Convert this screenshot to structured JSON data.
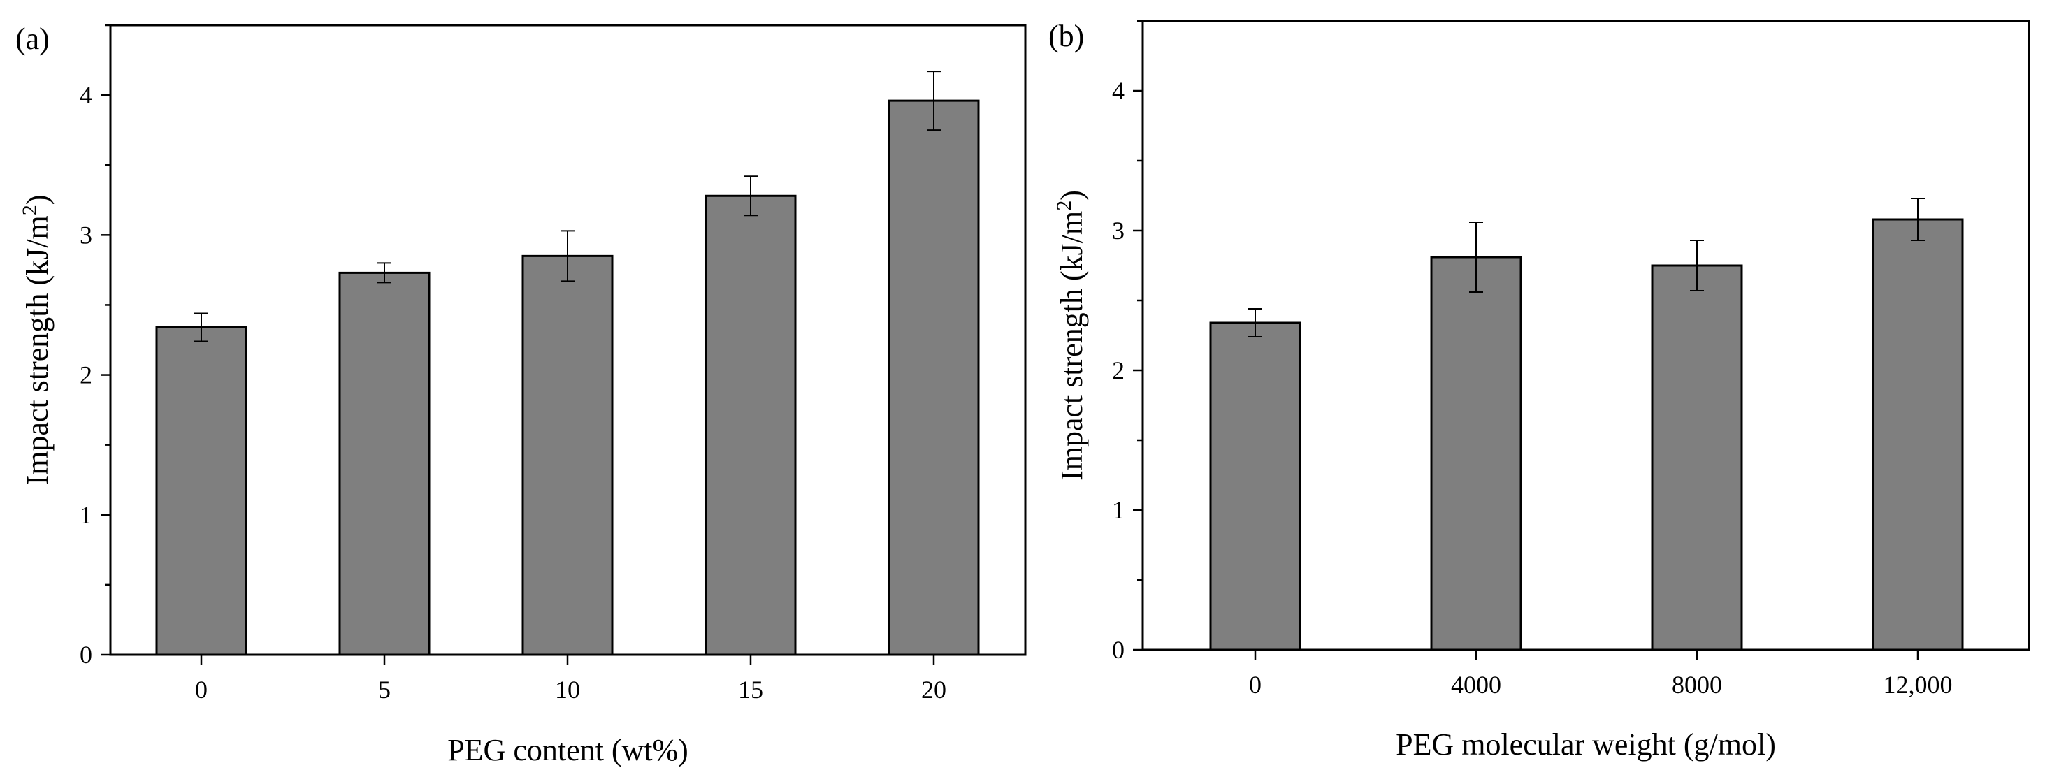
{
  "colors": {
    "bar_fill": "#7f7f7f",
    "bar_stroke": "#000000",
    "axis": "#000000",
    "background": "#ffffff"
  },
  "chart_data": [
    {
      "type": "bar",
      "panel_label": "(a)",
      "title": "",
      "categories": [
        "0",
        "5",
        "10",
        "15",
        "20"
      ],
      "values": [
        2.34,
        2.73,
        2.85,
        3.28,
        3.96
      ],
      "errors": [
        0.1,
        0.07,
        0.18,
        0.14,
        0.21
      ],
      "xlabel": "PEG content (wt%)",
      "ylabel": {
        "main": "Impact strength (kJ/m",
        "sup": "2",
        "tail": ")"
      },
      "ylim": [
        0,
        4.5
      ],
      "yticks": [
        0,
        1,
        2,
        3,
        4
      ],
      "grid": false,
      "legend": "none"
    },
    {
      "type": "bar",
      "panel_label": "(b)",
      "title": "",
      "categories": [
        "0",
        "4000",
        "8000",
        "12,000"
      ],
      "values": [
        2.34,
        2.81,
        2.75,
        3.08
      ],
      "errors": [
        0.1,
        0.25,
        0.18,
        0.15
      ],
      "xlabel": "PEG molecular weight (g/mol)",
      "ylabel": {
        "main": "Impact strength (kJ/m",
        "sup": "2",
        "tail": ")"
      },
      "ylim": [
        0,
        4.5
      ],
      "yticks": [
        0,
        1,
        2,
        3,
        4
      ],
      "grid": false,
      "legend": "none"
    }
  ]
}
